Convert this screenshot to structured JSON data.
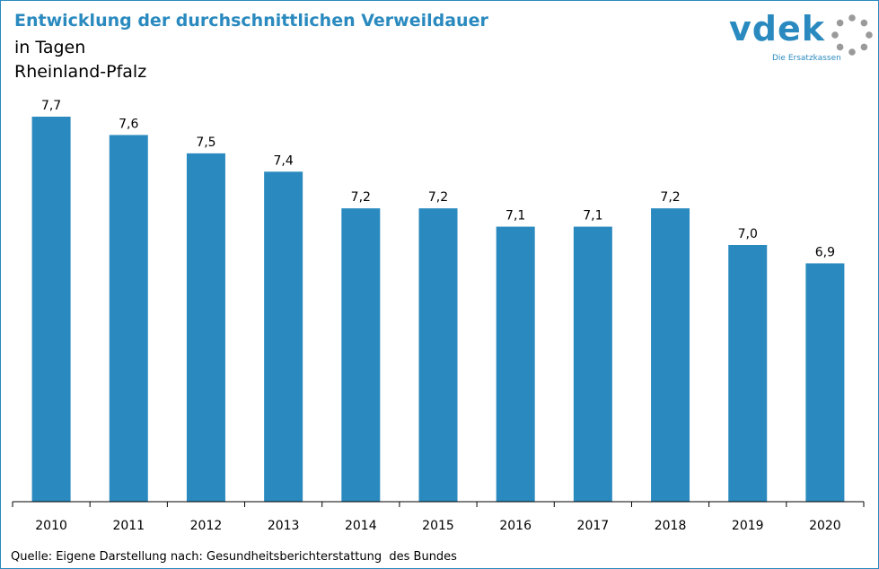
{
  "header": {
    "title": "Entwicklung der durchschnittlichen Verweildauer",
    "subtitle_line1": "in Tagen",
    "subtitle_line2": "Rheinland-Pfalz"
  },
  "logo": {
    "wordmark": "vdek",
    "tagline": "Die Ersatzkassen",
    "icon": "dotted-ring-icon"
  },
  "footer": {
    "source": "Quelle: Eigene Darstellung nach: Gesundheitsberichterstattung  des Bundes"
  },
  "colors": {
    "bar": "#2a8abf",
    "title": "#2a8abf",
    "logo_ring": "#9a9a9a"
  },
  "chart_data": {
    "type": "bar",
    "title": "Entwicklung der durchschnittlichen Verweildauer",
    "subtitle": "in Tagen",
    "xlabel": "",
    "ylabel": "",
    "categories": [
      "2010",
      "2011",
      "2012",
      "2013",
      "2014",
      "2015",
      "2016",
      "2017",
      "2018",
      "2019",
      "2020"
    ],
    "values": [
      7.7,
      7.6,
      7.5,
      7.4,
      7.2,
      7.2,
      7.1,
      7.1,
      7.2,
      7.0,
      6.9
    ],
    "value_labels": [
      "7,7",
      "7,6",
      "7,5",
      "7,4",
      "7,2",
      "7,2",
      "7,1",
      "7,1",
      "7,2",
      "7,0",
      "6,9"
    ],
    "ylim": [
      5.6,
      7.7
    ],
    "grid": false,
    "legend": "none"
  }
}
